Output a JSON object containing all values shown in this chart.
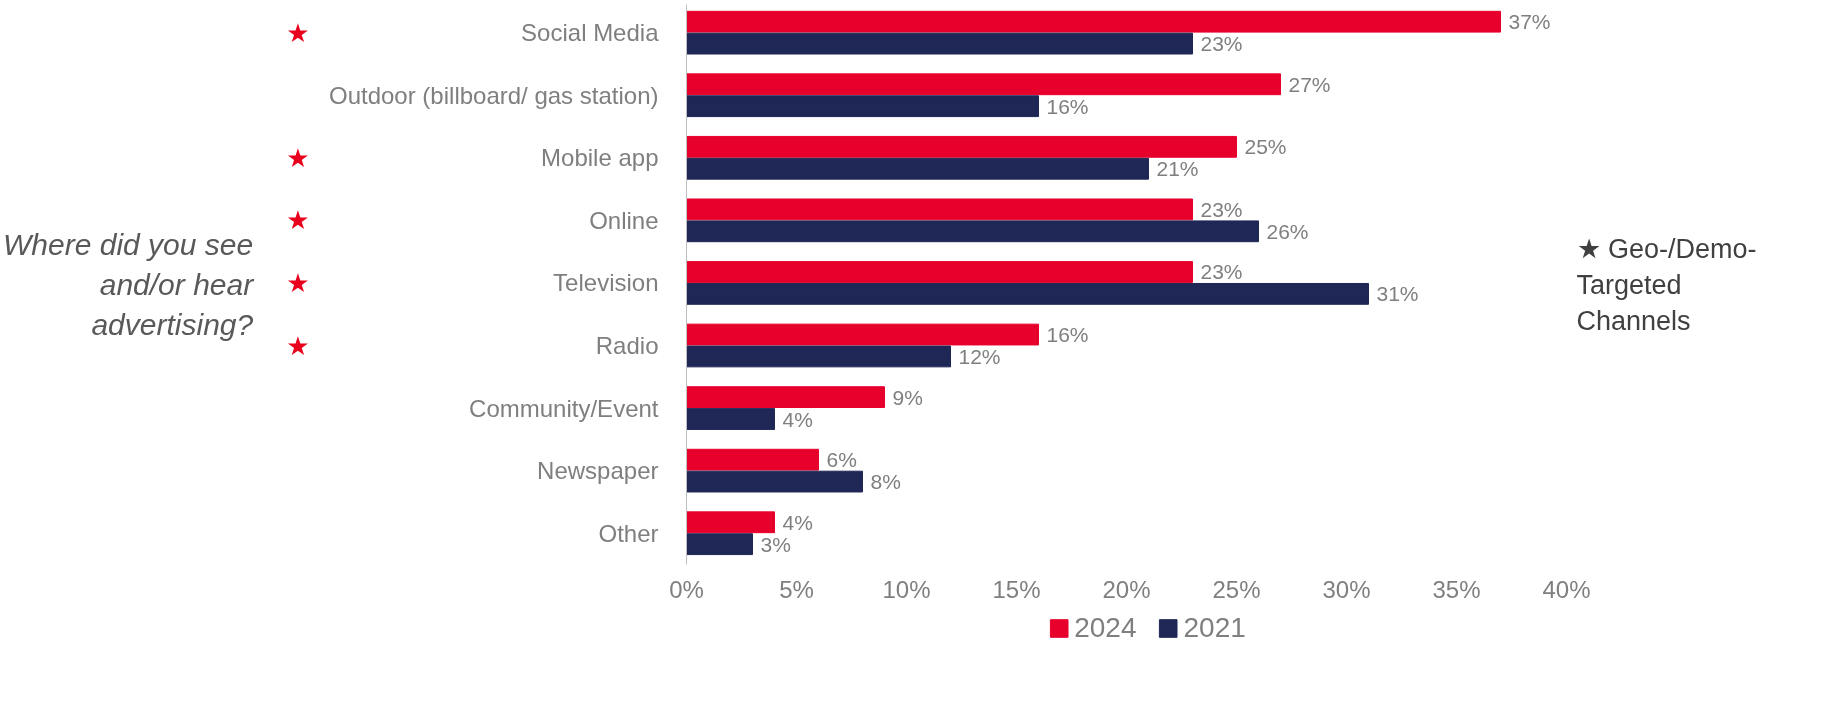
{
  "chart_data": {
    "type": "bar",
    "orientation": "horizontal",
    "categories": [
      "Social Media",
      "Outdoor (billboard/ gas station)",
      "Mobile app",
      "Online",
      "Television",
      "Radio",
      "Community/Event",
      "Newspaper",
      "Other"
    ],
    "series": [
      {
        "name": "2024",
        "color": "#e8002d",
        "values": [
          37,
          27,
          25,
          23,
          23,
          16,
          9,
          6,
          4
        ],
        "value_labels": [
          "37%",
          "27%",
          "25%",
          "23%",
          "23%",
          "16%",
          "9%",
          "6%",
          "4%"
        ]
      },
      {
        "name": "2021",
        "color": "#1f2756",
        "values": [
          23,
          16,
          21,
          26,
          31,
          12,
          4,
          8,
          3
        ],
        "value_labels": [
          "23%",
          "16%",
          "21%",
          "26%",
          "31%",
          "12%",
          "4%",
          "8%",
          "3%"
        ]
      }
    ],
    "xlim": [
      0,
      40
    ],
    "xticks": [
      {
        "value": 0,
        "label": "0%"
      },
      {
        "value": 5,
        "label": "5%"
      },
      {
        "value": 10,
        "label": "10%"
      },
      {
        "value": 15,
        "label": "15%"
      },
      {
        "value": 20,
        "label": "20%"
      },
      {
        "value": 25,
        "label": "25%"
      },
      {
        "value": 30,
        "label": "30%"
      },
      {
        "value": 35,
        "label": "35%"
      },
      {
        "value": 40,
        "label": "40%"
      }
    ],
    "grid": false,
    "legend": "bottom",
    "annotations": [
      "Where did you see and/or hear advertising?",
      "★ Geo-/Demo-Targeted Channels",
      "★",
      "★",
      "★",
      "★",
      "★"
    ]
  }
}
